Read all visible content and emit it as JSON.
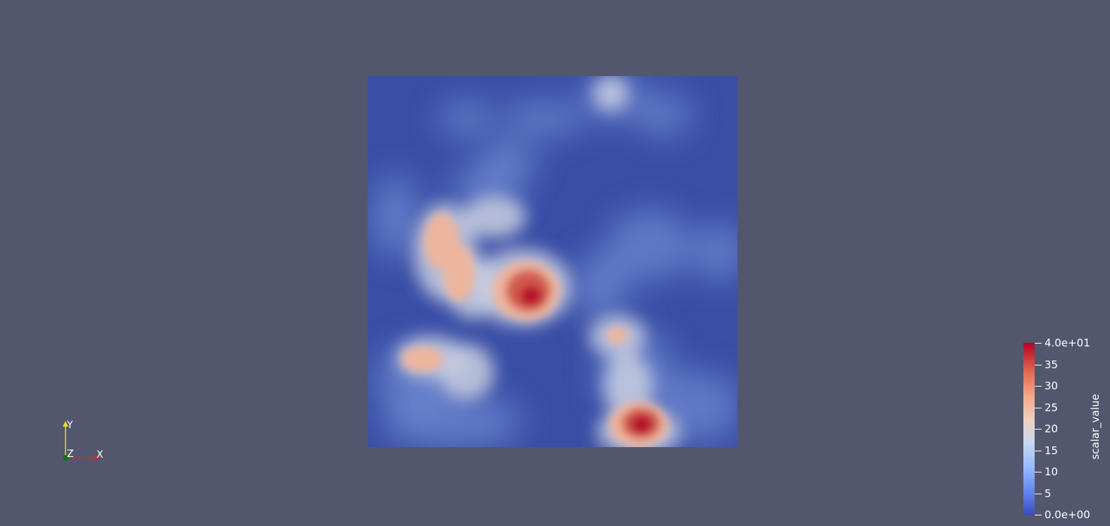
{
  "viewport": {
    "background_color": "#52576e"
  },
  "axes": {
    "x_label": "X",
    "y_label": "Y",
    "z_label": "Z",
    "x_color": "#d62728",
    "y_color": "#e6e600",
    "z_color": "#0a7a0a"
  },
  "colorbar": {
    "title": "scalar_value",
    "min_label": "0.0e+00",
    "max_label": "4.0e+01",
    "ticks": [
      "5",
      "10",
      "15",
      "20",
      "25",
      "30",
      "35"
    ],
    "range": [
      0,
      40
    ],
    "colormap": "Cool to Warm",
    "low_color": "#3b4cc0",
    "mid_color": "#dddddd",
    "high_color": "#b40426"
  },
  "chart_data": {
    "type": "heatmap",
    "title": "",
    "value_range": [
      0,
      40
    ],
    "colorbar_label": "scalar_value",
    "hotspots": [
      {
        "region": "center",
        "peak_value": 38
      },
      {
        "region": "upper-left arm",
        "peak_value": 27
      },
      {
        "region": "lower-left",
        "peak_value": 24
      },
      {
        "region": "bottom-right",
        "peak_value": 40
      },
      {
        "region": "mid-right",
        "peak_value": 22
      },
      {
        "region": "top",
        "peak_value": 14
      }
    ]
  }
}
